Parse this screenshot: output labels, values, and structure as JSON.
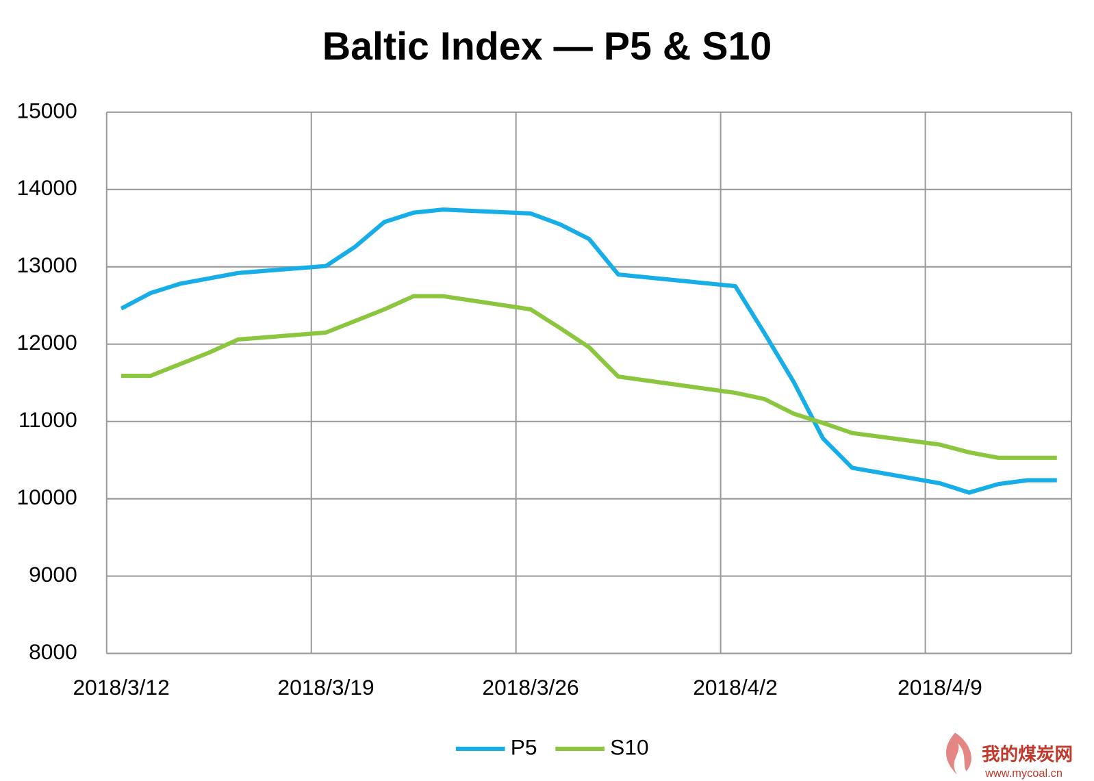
{
  "chart_data": {
    "type": "line",
    "title": "Baltic Index — P5 & S10",
    "x": [
      "2018/3/12",
      "2018/3/13",
      "2018/3/14",
      "2018/3/15",
      "2018/3/16",
      "2018/3/19",
      "2018/3/20",
      "2018/3/21",
      "2018/3/22",
      "2018/3/23",
      "2018/3/26",
      "2018/3/27",
      "2018/3/28",
      "2018/3/29",
      "2018/4/2",
      "2018/4/3",
      "2018/4/4",
      "2018/4/5",
      "2018/4/6",
      "2018/4/9",
      "2018/4/10",
      "2018/4/11",
      "2018/4/12",
      "2018/4/13"
    ],
    "series": [
      {
        "name": "P5",
        "color": "#17aee8",
        "values": [
          12460,
          12660,
          12780,
          12850,
          12920,
          13010,
          13260,
          13580,
          13700,
          13740,
          13690,
          13550,
          13360,
          12900,
          12750,
          12140,
          11510,
          10780,
          10400,
          10200,
          10080,
          10190,
          10240,
          10240
        ]
      },
      {
        "name": "S10",
        "color": "#8cc63f",
        "values": [
          11590,
          11590,
          11740,
          11890,
          12060,
          12150,
          12300,
          12450,
          12620,
          12620,
          12450,
          12210,
          11960,
          11580,
          11370,
          11290,
          11100,
          10980,
          10850,
          10700,
          10600,
          10530,
          10530,
          10530
        ]
      }
    ],
    "xlim": [
      "2018/3/12",
      "2018/4/13"
    ],
    "xticks": [
      "2018/3/12",
      "2018/3/19",
      "2018/3/26",
      "2018/4/2",
      "2018/4/9"
    ],
    "ylim": [
      8000,
      15000
    ],
    "yticks": [
      8000,
      9000,
      10000,
      11000,
      12000,
      13000,
      14000,
      15000
    ],
    "grid": true,
    "legend": "bottom"
  },
  "watermark": {
    "name": "我的煤炭网",
    "url": "www.mycoal.cn"
  }
}
